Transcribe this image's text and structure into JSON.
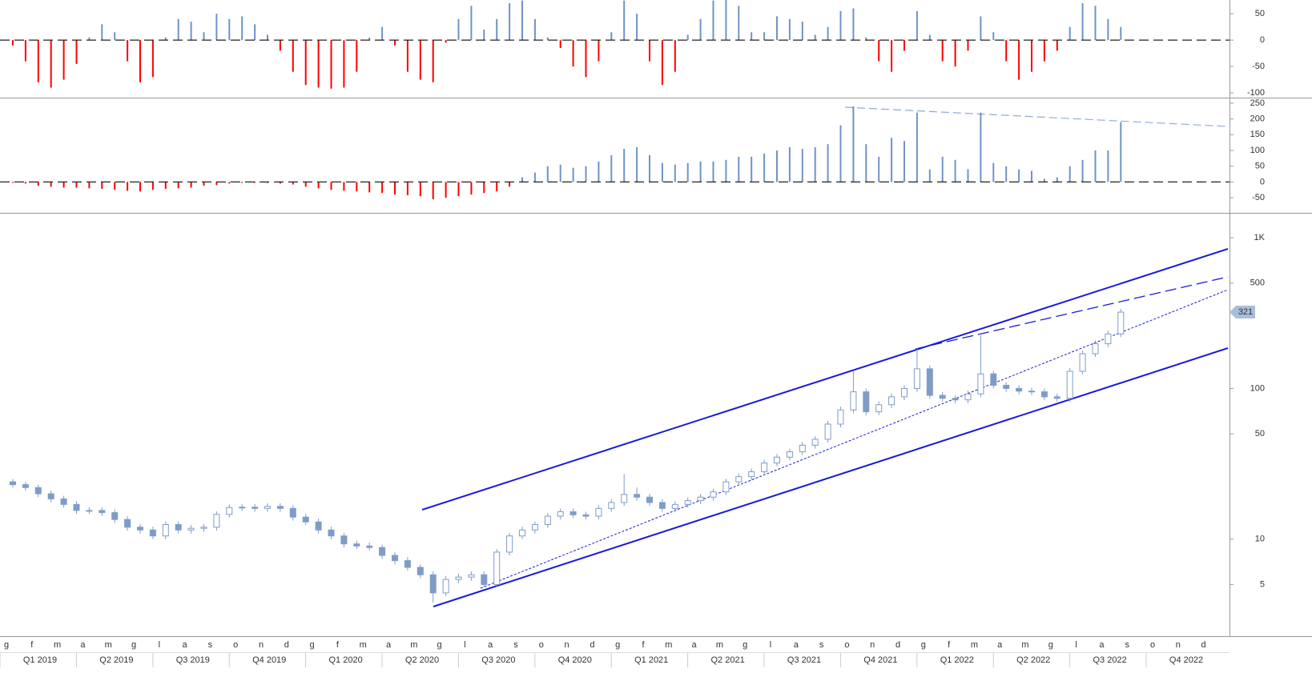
{
  "chart_data": [
    {
      "type": "bar",
      "color": "#6f93c6",
      "negative_color": "#ff0000",
      "zero_line": "dashed",
      "ylim": [
        -109,
        76
      ],
      "yticks": [
        -100,
        -50,
        0,
        50
      ],
      "values": [
        -10,
        -40,
        -80,
        -90,
        -75,
        -45,
        5,
        30,
        15,
        -40,
        -80,
        -70,
        5,
        40,
        35,
        15,
        50,
        40,
        45,
        30,
        10,
        -20,
        -60,
        -85,
        -90,
        -92,
        -90,
        -60,
        5,
        25,
        -10,
        -60,
        -75,
        -80,
        -5,
        40,
        65,
        20,
        40,
        70,
        75,
        40,
        5,
        -15,
        -50,
        -70,
        -40,
        15,
        75,
        50,
        -40,
        -85,
        -60,
        10,
        40,
        75,
        76,
        65,
        15,
        15,
        45,
        40,
        35,
        10,
        25,
        55,
        60,
        5,
        -40,
        -60,
        -20,
        55,
        10,
        -40,
        -50,
        -20,
        45,
        15,
        -40,
        -75,
        -60,
        -40,
        -20,
        25,
        70,
        65,
        40,
        25,
        null,
        null,
        null,
        null,
        null,
        null,
        null,
        null
      ]
    },
    {
      "type": "bar",
      "color": "#6f93c6",
      "negative_color": "#ff0000",
      "zero_line": "dashed",
      "ylim": [
        -98,
        265
      ],
      "yticks": [
        -50,
        0,
        50,
        100,
        150,
        200,
        250
      ],
      "values": [
        -3,
        -5,
        -12,
        -15,
        -18,
        -18,
        -20,
        -22,
        -25,
        -28,
        -30,
        -25,
        -22,
        -20,
        -18,
        -12,
        -10,
        -5,
        -3,
        -3,
        -3,
        -5,
        -8,
        -15,
        -20,
        -25,
        -28,
        -30,
        -33,
        -35,
        -40,
        -42,
        -45,
        -55,
        -50,
        -45,
        -40,
        -35,
        -30,
        -15,
        15,
        30,
        50,
        55,
        45,
        50,
        65,
        85,
        105,
        110,
        85,
        60,
        55,
        60,
        65,
        65,
        70,
        80,
        80,
        90,
        100,
        110,
        105,
        110,
        120,
        180,
        240,
        120,
        80,
        140,
        130,
        220,
        40,
        80,
        70,
        40,
        220,
        60,
        50,
        40,
        35,
        10,
        15,
        50,
        70,
        100,
        100,
        190,
        null,
        null,
        null,
        null,
        null,
        null,
        null,
        null
      ]
    },
    {
      "type": "candlestick",
      "log_scale": true,
      "up_color": "#ffffff",
      "down_color": "#7f9cc7",
      "edge_color": "#7f9cc7",
      "last_label_color": "#a9bedb",
      "ylim": [
        2.27,
        1393
      ],
      "yticks": [
        5,
        10,
        50,
        100,
        500,
        {
          "value": 1000,
          "label": "1K"
        }
      ],
      "categories": [
        "g",
        null,
        "f",
        null,
        "m",
        null,
        "a",
        null,
        "m",
        null,
        "g",
        null,
        "l",
        null,
        "a",
        null,
        "s",
        null,
        "o",
        null,
        "n",
        null,
        "d",
        null,
        "g",
        null,
        "f",
        null,
        "m",
        null,
        "a",
        null,
        "m",
        null,
        "g",
        null,
        "l",
        null,
        "a",
        null,
        "s",
        null,
        "o",
        null,
        "n",
        null,
        "d",
        null,
        "g",
        null,
        "f",
        null,
        "m",
        null,
        "a",
        null,
        "m",
        null,
        "g",
        null,
        "l",
        null,
        "a",
        null,
        "s",
        null,
        "o",
        null,
        "n",
        null,
        "d",
        null,
        "g",
        null,
        "f",
        null,
        "m",
        null,
        "a",
        null,
        "m",
        null,
        "g",
        null,
        "l",
        null,
        "a",
        null,
        "s",
        null,
        "o",
        null,
        "n",
        null,
        "d",
        null
      ],
      "quarters": [
        "Q1 2019",
        "Q2 2019",
        "Q3 2019",
        "Q4 2019",
        "Q1 2020",
        "Q2 2020",
        "Q3 2020",
        "Q4 2020",
        "Q1 2021",
        "Q2 2021",
        "Q3 2021",
        "Q4 2021",
        "Q1 2022",
        "Q2 2022",
        "Q3 2022",
        "Q4 2022"
      ],
      "open": [
        24,
        23,
        22,
        20,
        18.5,
        17,
        15.5,
        15.5,
        15,
        13.5,
        12,
        11.5,
        10.5,
        12.5,
        11.5,
        11.8,
        12,
        14.6,
        16.2,
        16.3,
        16,
        16.5,
        16,
        14,
        13,
        11.5,
        10.5,
        9.3,
        9,
        8.8,
        7.8,
        7.2,
        6.5,
        5.8,
        4.4,
        5.4,
        5.6,
        5.8,
        5,
        8.2,
        10.5,
        11.5,
        12.5,
        14.2,
        15.2,
        14.5,
        14.2,
        16,
        17.5,
        19.8,
        19,
        17.5,
        16,
        17,
        18,
        19,
        20.6,
        24,
        26,
        28,
        32,
        35,
        38,
        42,
        46,
        58,
        72,
        95,
        70,
        78,
        88,
        100,
        135,
        90,
        86,
        84,
        92,
        125,
        105,
        100,
        96,
        95,
        88,
        86,
        130,
        170,
        198,
        230,
        null,
        null,
        null,
        null,
        null,
        null,
        null,
        null
      ],
      "high": [
        25,
        24,
        23,
        21,
        19.4,
        17.9,
        16.3,
        16.3,
        15.8,
        14.2,
        12.6,
        12.1,
        13.1,
        13.1,
        12.4,
        12.6,
        15.3,
        17,
        17.1,
        17.1,
        17.3,
        17.3,
        16.8,
        14.7,
        13.7,
        12.1,
        11,
        9.8,
        9.5,
        9.2,
        8.2,
        7.6,
        6.8,
        6.1,
        5.7,
        5.9,
        6.1,
        6.1,
        8.6,
        11,
        12.1,
        13.1,
        14.9,
        16,
        16,
        15.2,
        16.8,
        18.4,
        27,
        22,
        20,
        18.4,
        17.9,
        18.9,
        20,
        21.6,
        25.2,
        27.3,
        29.4,
        33.6,
        36.8,
        39.9,
        44.1,
        48.3,
        60.9,
        75.6,
        130,
        99.8,
        81.9,
        92.4,
        105,
        185,
        142,
        94.5,
        90.3,
        96.6,
        225,
        131,
        110,
        105,
        101,
        99.8,
        92.4,
        137,
        179,
        208,
        242,
        337,
        null,
        null,
        null,
        null,
        null,
        null,
        null,
        null
      ],
      "low": [
        22,
        21,
        19,
        17.6,
        16.2,
        14.7,
        14.7,
        14.3,
        12.8,
        11.4,
        10.9,
        10,
        10,
        10.9,
        10.9,
        11.2,
        11.4,
        13.9,
        15.4,
        15.2,
        15.2,
        15.2,
        13.3,
        12.4,
        10.9,
        10,
        8.8,
        8.6,
        8.4,
        7.4,
        6.8,
        6.2,
        5.5,
        3.8,
        4.2,
        5.1,
        5.3,
        4.8,
        4.8,
        7.8,
        10,
        10.9,
        11.9,
        13.5,
        13.8,
        13.5,
        13.5,
        15.2,
        16.6,
        18,
        16.6,
        15.2,
        15.2,
        16.2,
        17.1,
        18,
        19.6,
        22.8,
        24.7,
        26.6,
        30.4,
        33.3,
        36.1,
        39.9,
        43.7,
        55.1,
        68.4,
        66.5,
        66.5,
        74.1,
        83.6,
        95,
        85.5,
        81.7,
        79.8,
        79.8,
        87.4,
        99.8,
        95,
        91.2,
        90.3,
        83.6,
        81.7,
        81.7,
        124,
        162,
        188,
        219,
        null,
        null,
        null,
        null,
        null,
        null,
        null,
        null
      ],
      "close": [
        23,
        22,
        20,
        18.5,
        17,
        15.5,
        15.5,
        15,
        13.5,
        12,
        11.5,
        10.5,
        12.5,
        11.5,
        11.8,
        12,
        14.6,
        16.2,
        16.3,
        16,
        16.5,
        16,
        14,
        13,
        11.5,
        10.5,
        9.3,
        9,
        8.8,
        7.8,
        7.2,
        6.5,
        5.8,
        4.4,
        5.4,
        5.6,
        5.8,
        5,
        8.2,
        10.5,
        11.5,
        12.5,
        14.2,
        15.2,
        14.5,
        14.2,
        16,
        17.5,
        19.8,
        19,
        17.5,
        16,
        17,
        18,
        19,
        20.6,
        24,
        26,
        28,
        32,
        35,
        38,
        42,
        46,
        58,
        72,
        95,
        70,
        78,
        88,
        100,
        135,
        90,
        86,
        84,
        92,
        125,
        105,
        100,
        96,
        95,
        88,
        86,
        130,
        170,
        198,
        230,
        321,
        null,
        null,
        null,
        null,
        null,
        null,
        null,
        null
      ]
    }
  ]
}
